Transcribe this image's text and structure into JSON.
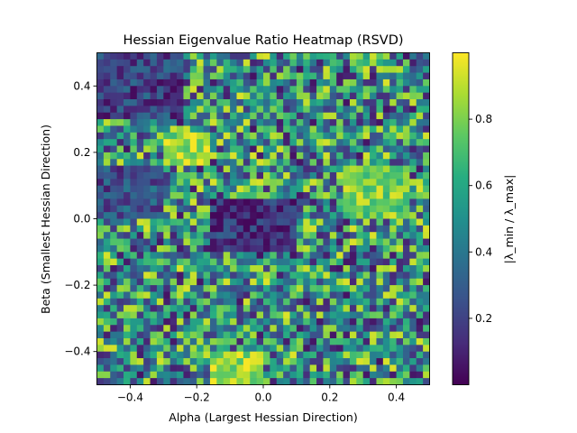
{
  "chart_data": {
    "type": "heatmap",
    "title": "Hessian Eigenvalue Ratio Heatmap (RSVD)",
    "xlabel": "Alpha (Largest Hessian Direction)",
    "ylabel": "Beta (Smallest Hessian Direction)",
    "xlim": [
      -0.5,
      0.5
    ],
    "ylim": [
      -0.5,
      0.5
    ],
    "x_ticks": [
      -0.4,
      -0.2,
      0.0,
      0.2,
      0.4
    ],
    "x_tick_labels": [
      "−0.4",
      "−0.2",
      "0.0",
      "0.2",
      "0.4"
    ],
    "y_ticks": [
      -0.4,
      -0.2,
      0.0,
      0.2,
      0.4
    ],
    "y_tick_labels": [
      "−0.4",
      "−0.2",
      "0.0",
      "0.2",
      "0.4"
    ],
    "grid_size": [
      50,
      50
    ],
    "colormap": "viridis",
    "colorbar": {
      "label": "|λ_min / λ_max|",
      "range": [
        0.0,
        1.0
      ],
      "ticks": [
        0.2,
        0.4,
        0.6,
        0.8
      ],
      "tick_labels": [
        "0.2",
        "0.4",
        "0.6",
        "0.8"
      ]
    },
    "regions": [
      {
        "description": "dark band (low ratio)",
        "x": [
          -0.5,
          -0.25
        ],
        "y": [
          0.3,
          0.5
        ],
        "value": 0.2
      },
      {
        "description": "dark band (low ratio)",
        "x": [
          -0.5,
          -0.3
        ],
        "y": [
          0.0,
          0.15
        ],
        "value": 0.25
      },
      {
        "description": "dark center (low ratio)",
        "x": [
          -0.15,
          0.1
        ],
        "y": [
          -0.1,
          0.05
        ],
        "value": 0.15
      },
      {
        "description": "bright patch (high ratio)",
        "x": [
          -0.3,
          -0.15
        ],
        "y": [
          0.15,
          0.25
        ],
        "value": 0.85
      },
      {
        "description": "bright patch (high ratio)",
        "x": [
          0.25,
          0.45
        ],
        "y": [
          0.0,
          0.15
        ],
        "value": 0.8
      },
      {
        "description": "bright patch (high ratio)",
        "x": [
          -0.15,
          0.0
        ],
        "y": [
          -0.5,
          -0.4
        ],
        "value": 0.85
      }
    ],
    "mean_value": 0.5
  }
}
